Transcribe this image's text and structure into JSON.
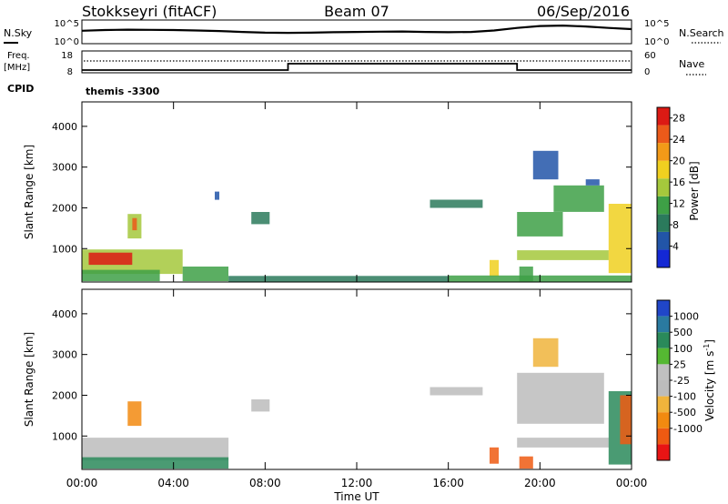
{
  "header": {
    "station": "Stokkseyri (fitACF)",
    "beam": "Beam 07",
    "date": "06/Sep/2016"
  },
  "noise_panel": {
    "left_label": "N.Sky",
    "right_label": "N.Search",
    "left_ticks": [
      "10^5",
      "10^0"
    ],
    "right_ticks": [
      "10^5",
      "10^0"
    ]
  },
  "freq_panel": {
    "left_label_1": "Freq.",
    "left_label_2": "[MHz]",
    "right_label": "Nave",
    "left_ticks": [
      "18",
      "8"
    ],
    "right_ticks": [
      "60",
      "0"
    ]
  },
  "cpid": {
    "label": "CPID",
    "value": "themis -3300"
  },
  "x_axis": {
    "title": "Time UT",
    "ticks": [
      "00:00",
      "04:00",
      "08:00",
      "12:00",
      "16:00",
      "20:00",
      "00:00"
    ]
  },
  "colors": {
    "power_scale": [
      "#1428d4",
      "#2255a8",
      "#2b7a5c",
      "#3ea046",
      "#a5c83c",
      "#f0d020",
      "#f29a18",
      "#eb5a1a",
      "#dc1a14"
    ],
    "velocity_scale": [
      "#e81414",
      "#ee5a12",
      "#f28a10",
      "#f0b43c",
      "#bcbcbc",
      "#c0c0c0",
      "#55b832",
      "#2a8a5a",
      "#2a7aa0",
      "#2046c8"
    ]
  },
  "chart_data": [
    {
      "type": "line",
      "name": "noise",
      "title": "Stokkseyri (fitACF)   Beam 07   06/Sep/2016",
      "x_unit": "hours UT",
      "xlim": [
        0,
        24
      ],
      "y_scale": "log",
      "ylim": [
        1,
        100000
      ],
      "series": [
        {
          "x": [
            0,
            1,
            2,
            3,
            4,
            5,
            6,
            7,
            8,
            9,
            10,
            11,
            12,
            13,
            14,
            15,
            16,
            17,
            18,
            19,
            20,
            21,
            22,
            23,
            24
          ],
          "y": [
            600,
            900,
            1100,
            1000,
            900,
            700,
            500,
            300,
            200,
            180,
            200,
            250,
            300,
            350,
            400,
            300,
            250,
            300,
            700,
            3000,
            9000,
            12000,
            7000,
            3000,
            1500
          ]
        }
      ]
    },
    {
      "type": "line",
      "name": "freq_nave",
      "x_unit": "hours UT",
      "xlim": [
        0,
        24
      ],
      "left_ylim": [
        8,
        18
      ],
      "right_ylim": [
        0,
        60
      ],
      "series": [
        {
          "x": [
            0,
            9,
            9,
            19,
            19,
            24
          ],
          "y": [
            8.5,
            8.5,
            12,
            12,
            8.5,
            8.5
          ]
        }
      ]
    },
    {
      "type": "heatmap",
      "name": "power",
      "xlabel": "Time UT",
      "ylabel": "Slant Range [km]",
      "colorbar_label": "Power [dB]",
      "xlim": [
        0,
        24
      ],
      "ylim": [
        180,
        4600
      ],
      "x_ticks": [
        "00:00",
        "04:00",
        "08:00",
        "12:00",
        "16:00",
        "20:00",
        "00:00"
      ],
      "y_ticks": [
        1000,
        2000,
        3000,
        4000
      ],
      "colorbar_ticks": [
        4,
        8,
        12,
        16,
        20,
        24,
        28
      ],
      "colorbar_range": [
        0,
        30
      ],
      "regions": [
        {
          "t0": 0.0,
          "t1": 4.4,
          "r0": 380,
          "r1": 980,
          "v": 14
        },
        {
          "t0": 0.3,
          "t1": 2.2,
          "r0": 600,
          "r1": 900,
          "v": 28
        },
        {
          "t0": 0.0,
          "t1": 3.4,
          "r0": 200,
          "r1": 480,
          "v": 12
        },
        {
          "t0": 4.4,
          "t1": 6.4,
          "r0": 200,
          "r1": 560,
          "v": 10
        },
        {
          "t0": 2.0,
          "t1": 2.6,
          "r0": 1250,
          "r1": 1850,
          "v": 16
        },
        {
          "t0": 2.2,
          "t1": 2.4,
          "r0": 1450,
          "r1": 1750,
          "v": 24
        },
        {
          "t0": 5.8,
          "t1": 6.0,
          "r0": 2200,
          "r1": 2400,
          "v": 6
        },
        {
          "t0": 7.4,
          "t1": 8.2,
          "r0": 1600,
          "r1": 1900,
          "v": 8
        },
        {
          "t0": 15.2,
          "t1": 17.5,
          "r0": 2000,
          "r1": 2200,
          "v": 7
        },
        {
          "t0": 17.8,
          "t1": 18.2,
          "r0": 320,
          "r1": 720,
          "v": 18
        },
        {
          "t0": 19.0,
          "t1": 23.0,
          "r0": 720,
          "r1": 960,
          "v": 14
        },
        {
          "t0": 19.1,
          "t1": 19.7,
          "r0": 200,
          "r1": 560,
          "v": 12
        },
        {
          "t0": 19.0,
          "t1": 21.0,
          "r0": 1300,
          "r1": 1900,
          "v": 12
        },
        {
          "t0": 20.6,
          "t1": 22.8,
          "r0": 1900,
          "r1": 2550,
          "v": 12
        },
        {
          "t0": 22.0,
          "t1": 22.6,
          "r0": 2550,
          "r1": 2700,
          "v": 6
        },
        {
          "t0": 19.7,
          "t1": 20.8,
          "r0": 2700,
          "r1": 3400,
          "v": 6
        },
        {
          "t0": 16.0,
          "t1": 24.0,
          "r0": 180,
          "r1": 340,
          "v": 10
        },
        {
          "t0": 23.0,
          "t1": 24.0,
          "r0": 400,
          "r1": 2100,
          "v": 18
        },
        {
          "t0": 6.4,
          "t1": 16.0,
          "r0": 180,
          "r1": 330,
          "v": 7
        }
      ]
    },
    {
      "type": "heatmap",
      "name": "velocity",
      "xlabel": "Time UT",
      "ylabel": "Slant Range [km]",
      "colorbar_label": "Velocity [m s^-1]",
      "xlim": [
        0,
        24
      ],
      "ylim": [
        180,
        4600
      ],
      "x_ticks": [
        "00:00",
        "04:00",
        "08:00",
        "12:00",
        "16:00",
        "20:00",
        "00:00"
      ],
      "y_ticks": [
        1000,
        2000,
        3000,
        4000
      ],
      "colorbar_ticks": [
        "1000",
        "500",
        "100",
        "25",
        "-25",
        "-100",
        "-500",
        "-1000"
      ],
      "regions": [
        {
          "t0": 0.0,
          "t1": 6.4,
          "r0": 400,
          "r1": 960,
          "v": 0
        },
        {
          "t0": 0.0,
          "t1": 6.4,
          "r0": 200,
          "r1": 480,
          "v": 120
        },
        {
          "t0": 2.0,
          "t1": 2.6,
          "r0": 1250,
          "r1": 1850,
          "v": -300
        },
        {
          "t0": 7.4,
          "t1": 8.2,
          "r0": 1600,
          "r1": 1900,
          "v": 0
        },
        {
          "t0": 15.2,
          "t1": 17.5,
          "r0": 2000,
          "r1": 2200,
          "v": 0
        },
        {
          "t0": 17.8,
          "t1": 18.2,
          "r0": 320,
          "r1": 720,
          "v": -600
        },
        {
          "t0": 19.1,
          "t1": 19.7,
          "r0": 200,
          "r1": 500,
          "v": -600
        },
        {
          "t0": 19.0,
          "t1": 23.0,
          "r0": 720,
          "r1": 960,
          "v": 0
        },
        {
          "t0": 19.0,
          "t1": 22.8,
          "r0": 1300,
          "r1": 2550,
          "v": 0
        },
        {
          "t0": 19.7,
          "t1": 20.8,
          "r0": 2700,
          "r1": 3400,
          "v": -50
        },
        {
          "t0": 23.0,
          "t1": 24.0,
          "r0": 300,
          "r1": 2100,
          "v": 150
        },
        {
          "t0": 23.5,
          "t1": 24.0,
          "r0": 800,
          "r1": 2000,
          "v": -600
        }
      ]
    }
  ]
}
